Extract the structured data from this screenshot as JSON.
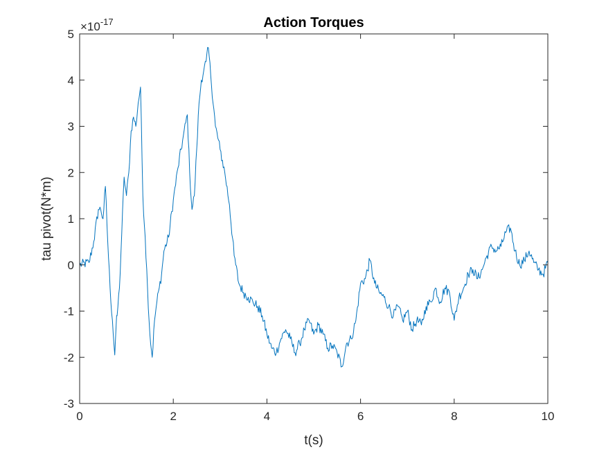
{
  "chart_data": {
    "type": "line",
    "title": "Action Torques",
    "xlabel": "t(s)",
    "ylabel": "tau pivot(N*m)",
    "exponent_base": "×10",
    "exponent_power": "-17",
    "xlim": [
      0,
      10
    ],
    "ylim": [
      -3,
      5
    ],
    "xticks": [
      0,
      2,
      4,
      6,
      8,
      10
    ],
    "yticks": [
      -3,
      -2,
      -1,
      0,
      1,
      2,
      3,
      4,
      5
    ],
    "grid": false,
    "line_color": "#0072BD",
    "series": [
      {
        "x": [
          0.0,
          0.2,
          0.3,
          0.4,
          0.45,
          0.5,
          0.55,
          0.6,
          0.65,
          0.7,
          0.75,
          0.78,
          0.8,
          0.85,
          0.9,
          0.95,
          1.0,
          1.05,
          1.1,
          1.15,
          1.2,
          1.25,
          1.3,
          1.35,
          1.4,
          1.45,
          1.5,
          1.55,
          1.6,
          1.65,
          1.7,
          1.75,
          1.8,
          1.9,
          2.0,
          2.1,
          2.2,
          2.3,
          2.35,
          2.4,
          2.45,
          2.5,
          2.55,
          2.6,
          2.65,
          2.7,
          2.75,
          2.8,
          2.9,
          3.0,
          3.1,
          3.2,
          3.3,
          3.4,
          3.5,
          3.6,
          3.7,
          3.8,
          3.9,
          4.0,
          4.1,
          4.2,
          4.3,
          4.4,
          4.5,
          4.6,
          4.7,
          4.8,
          4.9,
          5.0,
          5.1,
          5.2,
          5.3,
          5.4,
          5.5,
          5.6,
          5.7,
          5.8,
          5.9,
          6.0,
          6.1,
          6.2,
          6.3,
          6.4,
          6.5,
          6.6,
          6.7,
          6.8,
          6.9,
          7.0,
          7.1,
          7.2,
          7.3,
          7.4,
          7.5,
          7.6,
          7.7,
          7.8,
          7.9,
          8.0,
          8.1,
          8.2,
          8.3,
          8.4,
          8.5,
          8.6,
          8.7,
          8.8,
          8.9,
          9.0,
          9.1,
          9.2,
          9.3,
          9.4,
          9.5,
          9.6,
          9.7,
          9.8,
          9.9,
          10.0
        ],
        "y": [
          0.0,
          0.05,
          0.5,
          1.2,
          1.2,
          1.0,
          1.7,
          0.5,
          -0.5,
          -1.2,
          -1.95,
          -1.3,
          -1.1,
          -0.5,
          0.7,
          1.9,
          1.5,
          2.0,
          2.9,
          3.2,
          3.0,
          3.5,
          3.85,
          1.5,
          0.6,
          -0.5,
          -1.5,
          -2.0,
          -1.2,
          -0.8,
          -0.5,
          -0.2,
          0.3,
          0.6,
          1.4,
          2.1,
          2.7,
          3.25,
          2.0,
          1.2,
          1.5,
          2.5,
          3.5,
          4.0,
          4.2,
          4.4,
          4.7,
          4.1,
          3.0,
          2.5,
          2.0,
          1.3,
          0.2,
          -0.4,
          -0.6,
          -0.7,
          -0.8,
          -0.9,
          -1.1,
          -1.5,
          -1.8,
          -1.9,
          -1.6,
          -1.4,
          -1.6,
          -1.9,
          -1.7,
          -1.4,
          -1.2,
          -1.5,
          -1.3,
          -1.5,
          -1.8,
          -1.75,
          -1.9,
          -2.2,
          -1.7,
          -1.6,
          -1.2,
          -0.4,
          -0.3,
          0.1,
          -0.4,
          -0.6,
          -0.7,
          -0.9,
          -1.1,
          -0.9,
          -1.2,
          -1.0,
          -1.4,
          -1.2,
          -1.3,
          -0.9,
          -0.8,
          -0.5,
          -0.8,
          -0.5,
          -0.6,
          -1.2,
          -0.7,
          -0.5,
          -0.2,
          -0.1,
          -0.3,
          -0.1,
          0.2,
          0.4,
          0.3,
          0.4,
          0.7,
          0.8,
          0.3,
          0.0,
          0.1,
          0.3,
          0.05,
          -0.1,
          -0.2,
          0.05
        ]
      }
    ]
  }
}
